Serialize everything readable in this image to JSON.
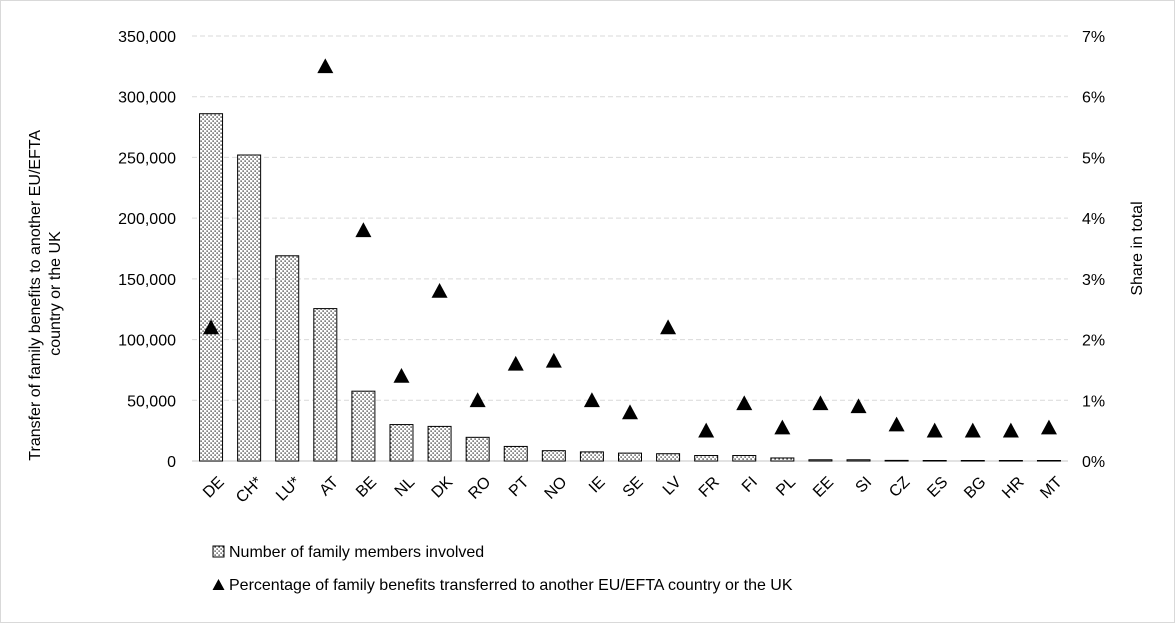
{
  "chart_data": {
    "type": "bar",
    "categories": [
      "DE",
      "CH*",
      "LU*",
      "AT",
      "BE",
      "NL",
      "DK",
      "RO",
      "PT",
      "NO",
      "IE",
      "SE",
      "LV",
      "FR",
      "FI",
      "PL",
      "EE",
      "SI",
      "CZ",
      "ES",
      "BG",
      "HR",
      "MT"
    ],
    "series": [
      {
        "name": "Number of family members involved",
        "type": "bar",
        "axis": "left",
        "values": [
          286000,
          252000,
          169000,
          125500,
          57500,
          30000,
          28500,
          19500,
          12000,
          8500,
          7500,
          6500,
          6000,
          4500,
          4500,
          2500,
          1000,
          1000,
          500,
          300,
          300,
          300,
          300
        ]
      },
      {
        "name": "Percentage of family benefits transferred to another EU/EFTA country or the UK",
        "type": "scatter",
        "marker": "triangle",
        "axis": "right",
        "values": [
          2.2,
          null,
          null,
          6.5,
          3.8,
          1.4,
          2.8,
          1.0,
          1.6,
          1.65,
          1.0,
          0.8,
          2.2,
          0.5,
          0.95,
          0.55,
          0.95,
          0.9,
          0.6,
          0.5,
          0.5,
          0.5,
          0.55
        ]
      }
    ],
    "y_left": {
      "label": "Transfer of family benefits to another EU/EFTA country or the UK",
      "label_lines": [
        "Transfer of family benefits to another EU/EFTA",
        "country or the UK"
      ],
      "ylim": [
        0,
        350000
      ],
      "ticks": [
        0,
        50000,
        100000,
        150000,
        200000,
        250000,
        300000,
        350000
      ],
      "tick_labels": [
        "0",
        "50,000",
        "100,000",
        "150,000",
        "200,000",
        "250,000",
        "300,000",
        "350,000"
      ]
    },
    "y_right": {
      "label": "Share in total",
      "ylim": [
        0,
        7
      ],
      "ticks": [
        0,
        1,
        2,
        3,
        4,
        5,
        6,
        7
      ],
      "tick_labels": [
        "0%",
        "1%",
        "2%",
        "3%",
        "4%",
        "5%",
        "6%",
        "7%"
      ]
    },
    "grid": true,
    "legend_position": "bottom-left",
    "colors": {
      "bar_outline": "#000000",
      "bar_dots": "#000000",
      "marker": "#000000",
      "grid": "#d9d9d9",
      "frame": "#d9d9d9"
    }
  }
}
